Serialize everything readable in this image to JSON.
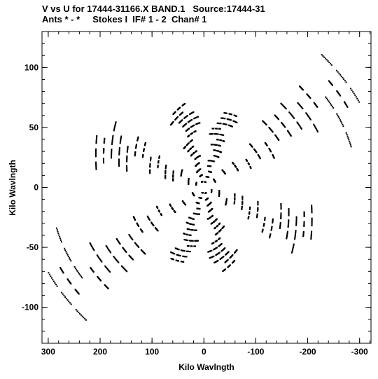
{
  "header": {
    "title_line_1": "V vs U for 17444-31166.X BAND.1   Source:17444-31",
    "title_line_2": "Ants * - *     Stokes I  IF# 1 - 2  Chan# 1"
  },
  "chart_data": {
    "type": "scatter",
    "title": "V vs U for 17444-31166.X BAND.1   Source:17444-31",
    "subtitle": "Ants * - *     Stokes I  IF# 1 - 2  Chan# 1",
    "xlabel": "Kilo Wavlngth",
    "ylabel": "Kilo Wavlngth",
    "x_axis_reversed": true,
    "xlim": [
      312,
      -322
    ],
    "ylim": [
      -130,
      130
    ],
    "xticks": [
      300,
      200,
      100,
      0,
      -100,
      -200,
      -300
    ],
    "yticks": [
      -100,
      -50,
      0,
      50,
      100
    ],
    "x_tick_labels": [
      "300",
      "200",
      "100",
      "0",
      "-100",
      "-200",
      "-300"
    ],
    "y_tick_labels": [
      "-100",
      "-50",
      "0",
      "50",
      "100"
    ],
    "grid": false,
    "legend": false,
    "marker_color": "#000000",
    "series": [
      {
        "arm_directions_deg": [
          -28,
          20,
          70,
          110
        ],
        "arm_length_kilo_wavelength": [
          320,
          220,
          130,
          120
        ],
        "baselines_per_arm": 14,
        "track_arc_span": 0.28,
        "description_note": "uv-coverage tracks: symmetric pairs of arc segments forming four-arm star pattern centered at origin"
      }
    ]
  }
}
